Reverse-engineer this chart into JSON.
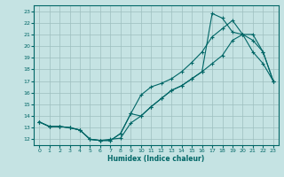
{
  "xlabel": "Humidex (Indice chaleur)",
  "bg_color": "#c5e3e3",
  "grid_color": "#9dbfbf",
  "line_color": "#006666",
  "xlim": [
    -0.5,
    23.5
  ],
  "ylim": [
    11.5,
    23.5
  ],
  "xticks": [
    0,
    1,
    2,
    3,
    4,
    5,
    6,
    7,
    8,
    9,
    10,
    11,
    12,
    13,
    14,
    15,
    16,
    17,
    18,
    19,
    20,
    21,
    22,
    23
  ],
  "yticks": [
    12,
    13,
    14,
    15,
    16,
    17,
    18,
    19,
    20,
    21,
    22,
    23
  ],
  "line1_x": [
    0,
    1,
    2,
    3,
    4,
    5,
    6,
    7,
    8,
    9,
    10,
    11,
    12,
    13,
    14,
    15,
    16,
    17,
    18,
    19,
    20,
    21,
    22,
    23
  ],
  "line1_y": [
    13.5,
    13.1,
    13.1,
    13.0,
    12.8,
    12.0,
    11.9,
    12.0,
    12.1,
    13.4,
    14.0,
    14.8,
    15.5,
    16.2,
    16.6,
    17.2,
    17.8,
    18.5,
    19.2,
    20.5,
    21.0,
    21.0,
    19.5,
    17.0
  ],
  "line2_x": [
    0,
    1,
    2,
    3,
    4,
    5,
    6,
    7,
    8,
    9,
    10,
    11,
    12,
    13,
    14,
    15,
    16,
    17,
    18,
    19,
    20,
    21,
    22,
    23
  ],
  "line2_y": [
    13.5,
    13.1,
    13.1,
    13.0,
    12.8,
    12.0,
    11.9,
    11.9,
    12.5,
    14.2,
    15.8,
    16.5,
    16.8,
    17.2,
    17.8,
    18.6,
    19.5,
    20.8,
    21.5,
    22.2,
    21.0,
    20.5,
    19.5,
    17.0
  ],
  "line3_x": [
    0,
    1,
    2,
    3,
    4,
    5,
    6,
    7,
    8,
    9,
    10,
    11,
    12,
    13,
    14,
    15,
    16,
    17,
    18,
    19,
    20,
    21,
    22,
    23
  ],
  "line3_y": [
    13.5,
    13.1,
    13.1,
    13.0,
    12.8,
    12.0,
    11.9,
    11.9,
    12.5,
    14.2,
    14.0,
    14.8,
    15.5,
    16.2,
    16.6,
    17.2,
    17.8,
    22.8,
    22.4,
    21.2,
    21.0,
    19.5,
    18.5,
    17.0
  ]
}
